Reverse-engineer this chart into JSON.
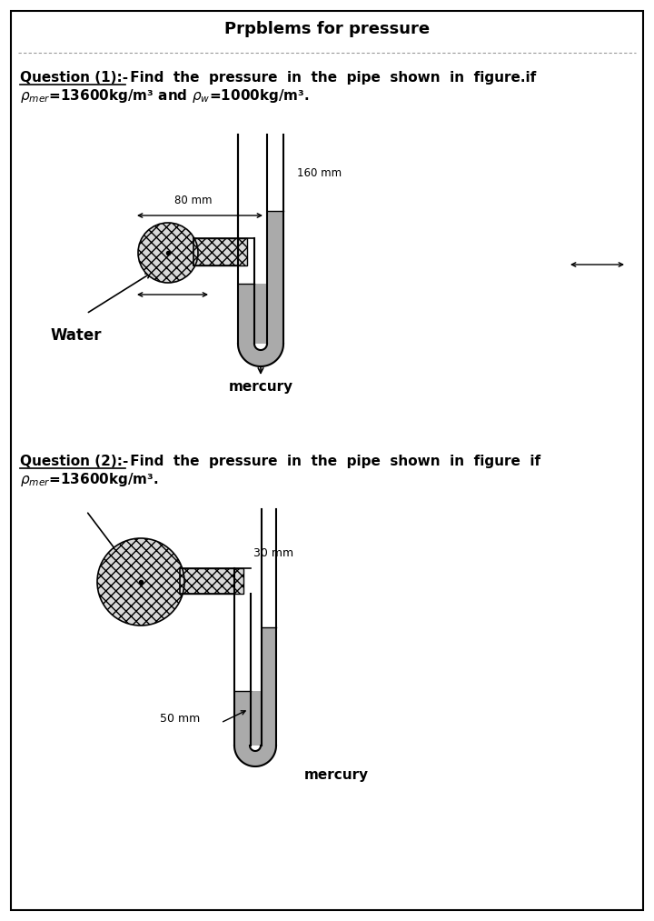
{
  "title": "Prpblems for pressure",
  "bg_color": "#ffffff",
  "q1_label_underline": "Question (1):-",
  "q1_rest": "  Find  the  pressure  in  the  pipe  shown  in  figure.if",
  "q1_line2a": "ρ",
  "q1_line2": "=13600kg/m³ and ρ",
  "q1_line2b": "=1000kg/m³.",
  "q1_water_label": "Water",
  "q1_mercury_label": "mercury",
  "q1_dim1": "80 mm",
  "q1_dim2": "160 mm",
  "q2_label_underline": "Question (2):-",
  "q2_rest": "  Find  the  pressure  in  the  pipe  shown  in  figure  if",
  "q2_line2": "ρ",
  "q2_line2b": "=13600kg/m³.",
  "q2_mercury_label": "mercury",
  "q2_dim1": "30 mm",
  "q2_dim2": "50 mm",
  "pipe_fill": "#cccccc",
  "mercury_fill": "#999999",
  "hatch": "xxx"
}
